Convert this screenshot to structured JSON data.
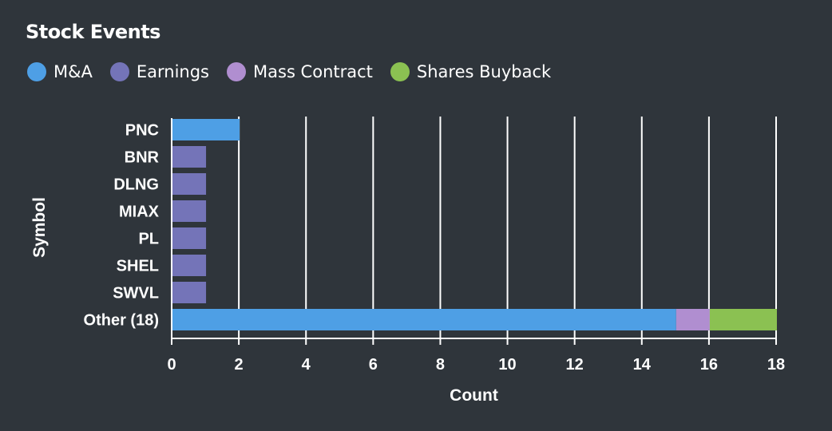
{
  "chart_data": {
    "type": "bar",
    "orientation": "horizontal",
    "stacked": true,
    "title": "Stock Events",
    "xlabel": "Count",
    "ylabel": "Symbol",
    "xlim": [
      0,
      18
    ],
    "xticks": [
      0,
      2,
      4,
      6,
      8,
      10,
      12,
      14,
      16,
      18
    ],
    "grid": "vertical",
    "legend_position": "top-left",
    "categories": [
      "PNC",
      "BNR",
      "DLNG",
      "MIAX",
      "PL",
      "SHEL",
      "SWVL",
      "Other (18)"
    ],
    "series": [
      {
        "name": "M&A",
        "color": "#4e9fe5",
        "values": [
          2,
          0,
          0,
          0,
          0,
          0,
          0,
          15
        ]
      },
      {
        "name": "Earnings",
        "color": "#7474b8",
        "values": [
          0,
          1,
          1,
          1,
          1,
          1,
          1,
          0
        ]
      },
      {
        "name": "Mass Contract",
        "color": "#b08ed0",
        "values": [
          0,
          0,
          0,
          0,
          0,
          0,
          0,
          1
        ]
      },
      {
        "name": "Shares Buyback",
        "color": "#8bc152",
        "values": [
          0,
          0,
          0,
          0,
          0,
          0,
          0,
          2
        ]
      }
    ]
  }
}
